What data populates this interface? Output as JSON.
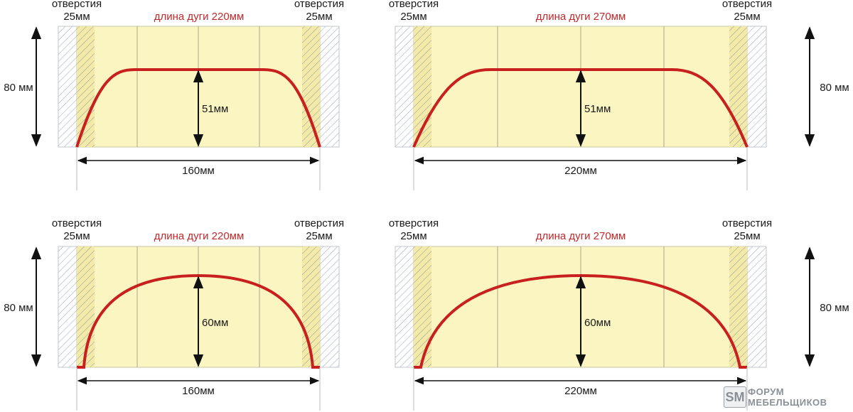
{
  "diagrams": [
    {
      "hole_left_label": "отверстия",
      "hole_left_size": "25мм",
      "hole_right_label": "отверстия",
      "hole_right_size": "25мм",
      "arc_length_label": "длина дуги 220мм",
      "height_label": "80 мм",
      "rise_label": "51мм",
      "span_label": "160мм"
    },
    {
      "hole_left_label": "отверстия",
      "hole_left_size": "25мм",
      "hole_right_label": "отверстия",
      "hole_right_size": "25мм",
      "arc_length_label": "длина дуги 270мм",
      "height_label": "80 мм",
      "rise_label": "51мм",
      "span_label": "220мм"
    },
    {
      "hole_left_label": "отверстия",
      "hole_left_size": "25мм",
      "hole_right_label": "отверстия",
      "hole_right_size": "25мм",
      "arc_length_label": "длина дуги 220мм",
      "height_label": "80 мм",
      "rise_label": "60мм",
      "span_label": "160мм"
    },
    {
      "hole_left_label": "отверстия",
      "hole_left_size": "25мм",
      "hole_right_label": "отверстия",
      "hole_right_size": "25мм",
      "arc_length_label": "длина дуги 270мм",
      "height_label": "80 мм",
      "rise_label": "60мм",
      "span_label": "220мм"
    }
  ],
  "logo": {
    "mark": "SM",
    "line1": "ФОРУМ",
    "line2": "МЕБЕЛЬЩИКОВ"
  },
  "colors": {
    "panel_fill": "#fbf5c2",
    "panel_stroke": "#c9c6a0",
    "arc": "#c8201e",
    "arc_label": "#c0292b",
    "hatch": "#9aa4b4",
    "text": "#1a1a1a"
  }
}
